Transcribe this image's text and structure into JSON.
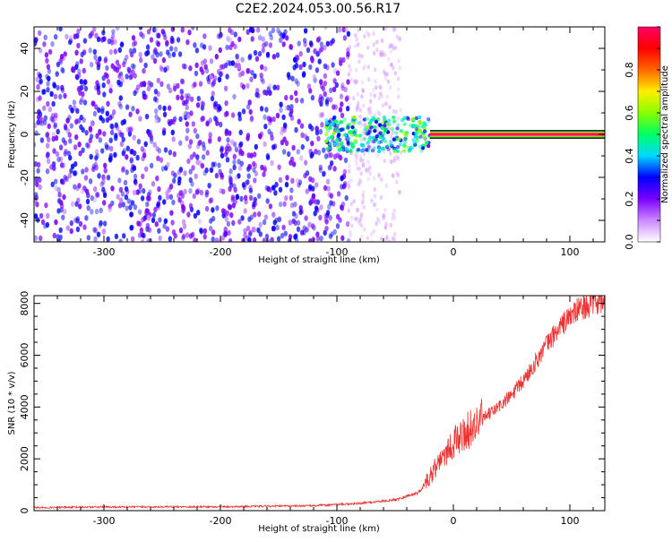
{
  "title": "C2E2.2024.053.00.56.R17",
  "chart_data": [
    {
      "type": "heatmap",
      "xlabel": "Height of straight line (km)",
      "ylabel": "Frequency (Hz)",
      "xlim": [
        -360,
        130
      ],
      "ylim": [
        -50,
        50
      ],
      "x_ticks": [
        "-300",
        "-200",
        "-100",
        "0",
        "100"
      ],
      "y_ticks": [
        "-40",
        "-20",
        "0",
        "20",
        "40"
      ],
      "colorbar": {
        "label": "Normalized spectral amplitude",
        "range": [
          0,
          1
        ],
        "ticks": [
          "0.0",
          "0.2",
          "0.4",
          "0.6",
          "0.8"
        ],
        "colors": [
          "#ffffff",
          "#cc88ff",
          "#7a00ff",
          "#0000ff",
          "#00d8ff",
          "#00ff66",
          "#88ff00",
          "#ffee00",
          "#ff6600",
          "#ff0000",
          "#ff0066"
        ]
      },
      "regions": [
        {
          "description": "diffuse noise",
          "x": [
            -360,
            -90
          ],
          "freq": [
            -50,
            50
          ],
          "amplitude": 0.2
        },
        {
          "description": "transition",
          "x": [
            -90,
            -45
          ],
          "freq": [
            -50,
            50
          ],
          "amplitude": 0.08
        },
        {
          "description": "signal cluster",
          "x": [
            -110,
            -20
          ],
          "freq": [
            -8,
            8
          ],
          "amplitude": 0.35
        },
        {
          "description": "carrier line",
          "x": [
            -20,
            130
          ],
          "freq": [
            -1,
            1
          ],
          "amplitude": 0.95
        }
      ]
    },
    {
      "type": "line",
      "xlabel": "Height of straight line (km)",
      "ylabel": "SNR (10 * v/v)",
      "xlim": [
        -360,
        130
      ],
      "ylim": [
        0,
        8300
      ],
      "x_ticks": [
        "-300",
        "-200",
        "-100",
        "0",
        "100"
      ],
      "y_ticks": [
        "0",
        "2000",
        "4000",
        "6000",
        "8000"
      ],
      "color": "#ee3333",
      "x": [
        -360,
        -300,
        -200,
        -120,
        -80,
        -50,
        -30,
        -20,
        -10,
        0,
        10,
        20,
        30,
        40,
        50,
        60,
        70,
        80,
        90,
        100,
        110,
        120,
        130
      ],
      "y": [
        120,
        140,
        150,
        190,
        280,
        420,
        700,
        1300,
        2100,
        2600,
        3000,
        3350,
        3700,
        4050,
        4450,
        5000,
        5700,
        6400,
        7000,
        7500,
        7850,
        8000,
        8050
      ]
    }
  ]
}
